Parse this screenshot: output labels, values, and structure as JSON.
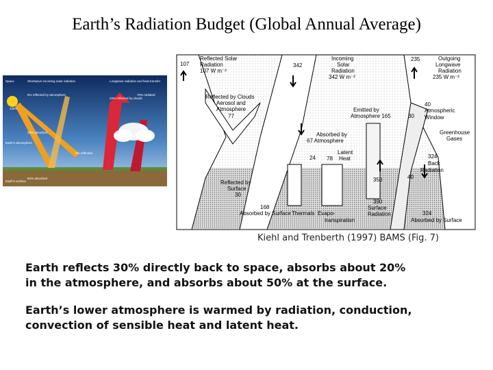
{
  "title": "Earth’s Radiation Budget (Global Annual Average)",
  "left_diagram": {
    "labels": [
      "Space",
      "Shortwave incoming solar radiation",
      "Longwave radiation and heat transfer",
      "100%",
      "6% reflected by atmosphere",
      "20% reflected by clouds",
      "20% absorbed",
      "Earth's atmosphere",
      "4% reflected",
      "Earth's surface",
      "50% absorbed",
      "70% radiated"
    ]
  },
  "right_diagram": {
    "labels": [
      "107",
      "Reflected Solar",
      "Radiation",
      "107 W m⁻²",
      "342",
      "Incoming",
      "Solar",
      "Radiation",
      "342 W m⁻²",
      "235",
      "Outgoing",
      "Longwave",
      "Radiation",
      "235 W m⁻²",
      "Reflected by Clouds",
      "Aerosol and",
      "Atmosphere",
      "77",
      "Emitted by",
      "Atmosphere 165",
      "30",
      "40",
      "Atmospheric",
      "Window",
      "Greenhouse",
      "Gases",
      "Absorbed by",
      "67 Atmosphere",
      "24",
      "78",
      "Latent",
      "Heat",
      "Reflected by",
      "Surface",
      "30",
      "350",
      "40",
      "324",
      "Back",
      "Radiation",
      "168",
      "Absorbed by Surface",
      "Thermals",
      "Evapo-",
      "transpiration",
      "390",
      "Surface",
      "Radiation",
      "324",
      "Absorbed by Surface"
    ]
  },
  "caption": "Kiehl and Trenberth (1997) BAMS (Fig. 7)",
  "paragraphs": [
    [
      "Earth reflects 30% directly back to space, absorbs about 20%",
      "in the atmosphere, and absorbs about 50% at the surface."
    ],
    [
      "Earth’s lower atmosphere is warmed by radiation, conduction,",
      "convection of sensible heat and latent heat."
    ]
  ]
}
